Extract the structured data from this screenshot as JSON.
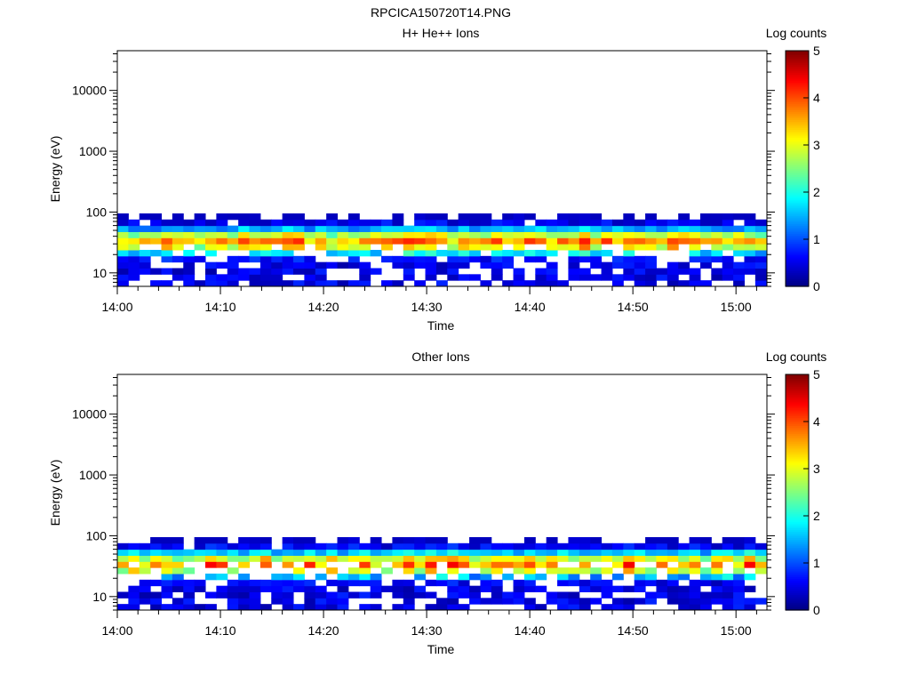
{
  "figure_title": "RPCICA150720T14.PNG",
  "chart_data": [
    {
      "type": "heatmap",
      "title": "H+ He++ Ions",
      "xlabel": "Time",
      "ylabel": "Energy (eV)",
      "x_ticks": [
        "14:00",
        "14:10",
        "14:20",
        "14:30",
        "14:40",
        "14:50",
        "15:00"
      ],
      "x_range": [
        "14:00",
        "15:03"
      ],
      "y_scale": "log",
      "y_range": [
        6,
        45000
      ],
      "y_ticks": [
        "10",
        "100",
        "1000",
        "10000"
      ],
      "colorbar": {
        "label": "Log counts",
        "range": [
          0,
          5
        ],
        "ticks": [
          "0",
          "1",
          "2",
          "3",
          "4",
          "5"
        ],
        "colormap": "jet"
      },
      "energy_band_eV": [
        6,
        95
      ],
      "peak_energy_eV": 33,
      "column_seconds": 64,
      "seed": 7
    },
    {
      "type": "heatmap",
      "title": "Other Ions",
      "xlabel": "Time",
      "ylabel": "Energy (eV)",
      "x_ticks": [
        "14:00",
        "14:10",
        "14:20",
        "14:30",
        "14:40",
        "14:50",
        "15:00"
      ],
      "x_range": [
        "14:00",
        "15:03"
      ],
      "y_scale": "log",
      "y_range": [
        6,
        45000
      ],
      "y_ticks": [
        "10",
        "100",
        "1000",
        "10000"
      ],
      "colorbar": {
        "label": "Log counts",
        "range": [
          0,
          5
        ],
        "ticks": [
          "0",
          "1",
          "2",
          "3",
          "4",
          "5"
        ],
        "colormap": "jet"
      },
      "energy_band_eV": [
        6,
        95
      ],
      "peak_energy_eV": 34,
      "column_seconds": 64,
      "seed": 23
    }
  ]
}
